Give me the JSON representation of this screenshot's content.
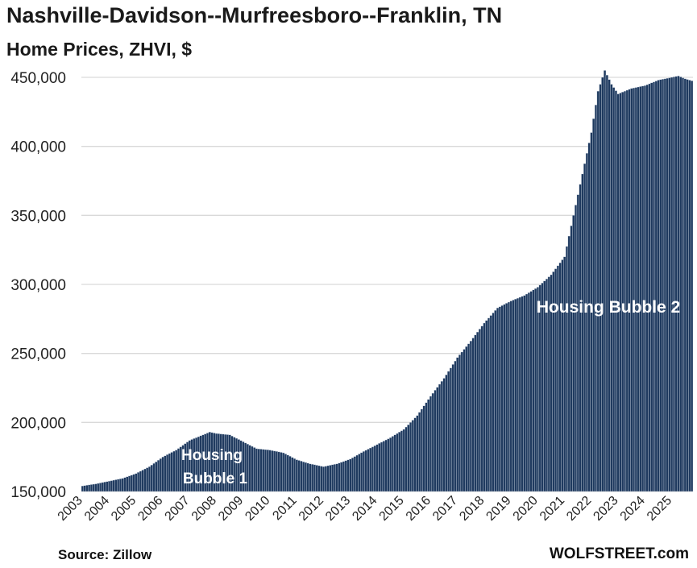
{
  "header": {
    "title": "Nashville-Davidson--Murfreesboro--Franklin, TN",
    "subtitle": "Home Prices, ZHVI, $"
  },
  "footer": {
    "source": "Source: Zillow",
    "brand": "WOLFSTREET.com"
  },
  "colors": {
    "bar_fill": "#1f3a5f",
    "bar_edge": "#cfd8e3",
    "grid": "#d9d9d9",
    "text": "#222222"
  },
  "chart_data": {
    "type": "bar",
    "title": "Nashville-Davidson--Murfreesboro--Franklin, TN",
    "subtitle": "Home Prices, ZHVI, $",
    "frequency": "monthly",
    "x_start": "2003-01",
    "x_end": "2025-10",
    "x_tick_labels": [
      "2003",
      "2004",
      "2005",
      "2006",
      "2007",
      "2008",
      "2009",
      "2010",
      "2011",
      "2012",
      "2013",
      "2014",
      "2015",
      "2016",
      "2017",
      "2018",
      "2019",
      "2020",
      "2021",
      "2022",
      "2023",
      "2024",
      "2025"
    ],
    "ylim": [
      150000,
      450000
    ],
    "y_ticks": [
      150000,
      200000,
      250000,
      300000,
      350000,
      400000,
      450000
    ],
    "y_tick_labels": [
      "150,000",
      "200,000",
      "250,000",
      "300,000",
      "350,000",
      "400,000",
      "450,000"
    ],
    "grid": "horizontal",
    "legend": "none",
    "annual_anchor_values": [
      {
        "x": "2003-01",
        "y": 154000
      },
      {
        "x": "2003-07",
        "y": 155500
      },
      {
        "x": "2004-01",
        "y": 157500
      },
      {
        "x": "2004-07",
        "y": 159500
      },
      {
        "x": "2005-01",
        "y": 163000
      },
      {
        "x": "2005-07",
        "y": 168000
      },
      {
        "x": "2006-01",
        "y": 175000
      },
      {
        "x": "2006-07",
        "y": 180000
      },
      {
        "x": "2007-01",
        "y": 187000
      },
      {
        "x": "2007-07",
        "y": 191000
      },
      {
        "x": "2007-10",
        "y": 193000
      },
      {
        "x": "2008-01",
        "y": 192000
      },
      {
        "x": "2008-07",
        "y": 191000
      },
      {
        "x": "2009-01",
        "y": 186000
      },
      {
        "x": "2009-07",
        "y": 181000
      },
      {
        "x": "2010-01",
        "y": 180000
      },
      {
        "x": "2010-07",
        "y": 178000
      },
      {
        "x": "2011-01",
        "y": 173000
      },
      {
        "x": "2011-07",
        "y": 170000
      },
      {
        "x": "2012-01",
        "y": 168000
      },
      {
        "x": "2012-07",
        "y": 170000
      },
      {
        "x": "2013-01",
        "y": 173500
      },
      {
        "x": "2013-07",
        "y": 179000
      },
      {
        "x": "2014-01",
        "y": 184000
      },
      {
        "x": "2014-07",
        "y": 189000
      },
      {
        "x": "2015-01",
        "y": 195000
      },
      {
        "x": "2015-07",
        "y": 205000
      },
      {
        "x": "2016-01",
        "y": 219000
      },
      {
        "x": "2016-07",
        "y": 232000
      },
      {
        "x": "2017-01",
        "y": 247000
      },
      {
        "x": "2017-07",
        "y": 259000
      },
      {
        "x": "2018-01",
        "y": 272000
      },
      {
        "x": "2018-07",
        "y": 283000
      },
      {
        "x": "2019-01",
        "y": 288000
      },
      {
        "x": "2019-07",
        "y": 292000
      },
      {
        "x": "2020-01",
        "y": 298000
      },
      {
        "x": "2020-07",
        "y": 307000
      },
      {
        "x": "2021-01",
        "y": 320000
      },
      {
        "x": "2021-07",
        "y": 365000
      },
      {
        "x": "2022-01",
        "y": 410000
      },
      {
        "x": "2022-04",
        "y": 440000
      },
      {
        "x": "2022-07",
        "y": 455000
      },
      {
        "x": "2022-10",
        "y": 445000
      },
      {
        "x": "2023-01",
        "y": 438000
      },
      {
        "x": "2023-04",
        "y": 440000
      },
      {
        "x": "2023-07",
        "y": 442000
      },
      {
        "x": "2024-01",
        "y": 444000
      },
      {
        "x": "2024-07",
        "y": 448000
      },
      {
        "x": "2025-01",
        "y": 450000
      },
      {
        "x": "2025-04",
        "y": 451000
      },
      {
        "x": "2025-07",
        "y": 449000
      },
      {
        "x": "2025-10",
        "y": 447500
      }
    ],
    "annotations": [
      {
        "text_lines": [
          "Housing",
          "Bubble 1"
        ],
        "near_x": "2008-01"
      },
      {
        "text_lines": [
          "Housing Bubble 2"
        ],
        "near_x": "2023-01"
      }
    ]
  }
}
